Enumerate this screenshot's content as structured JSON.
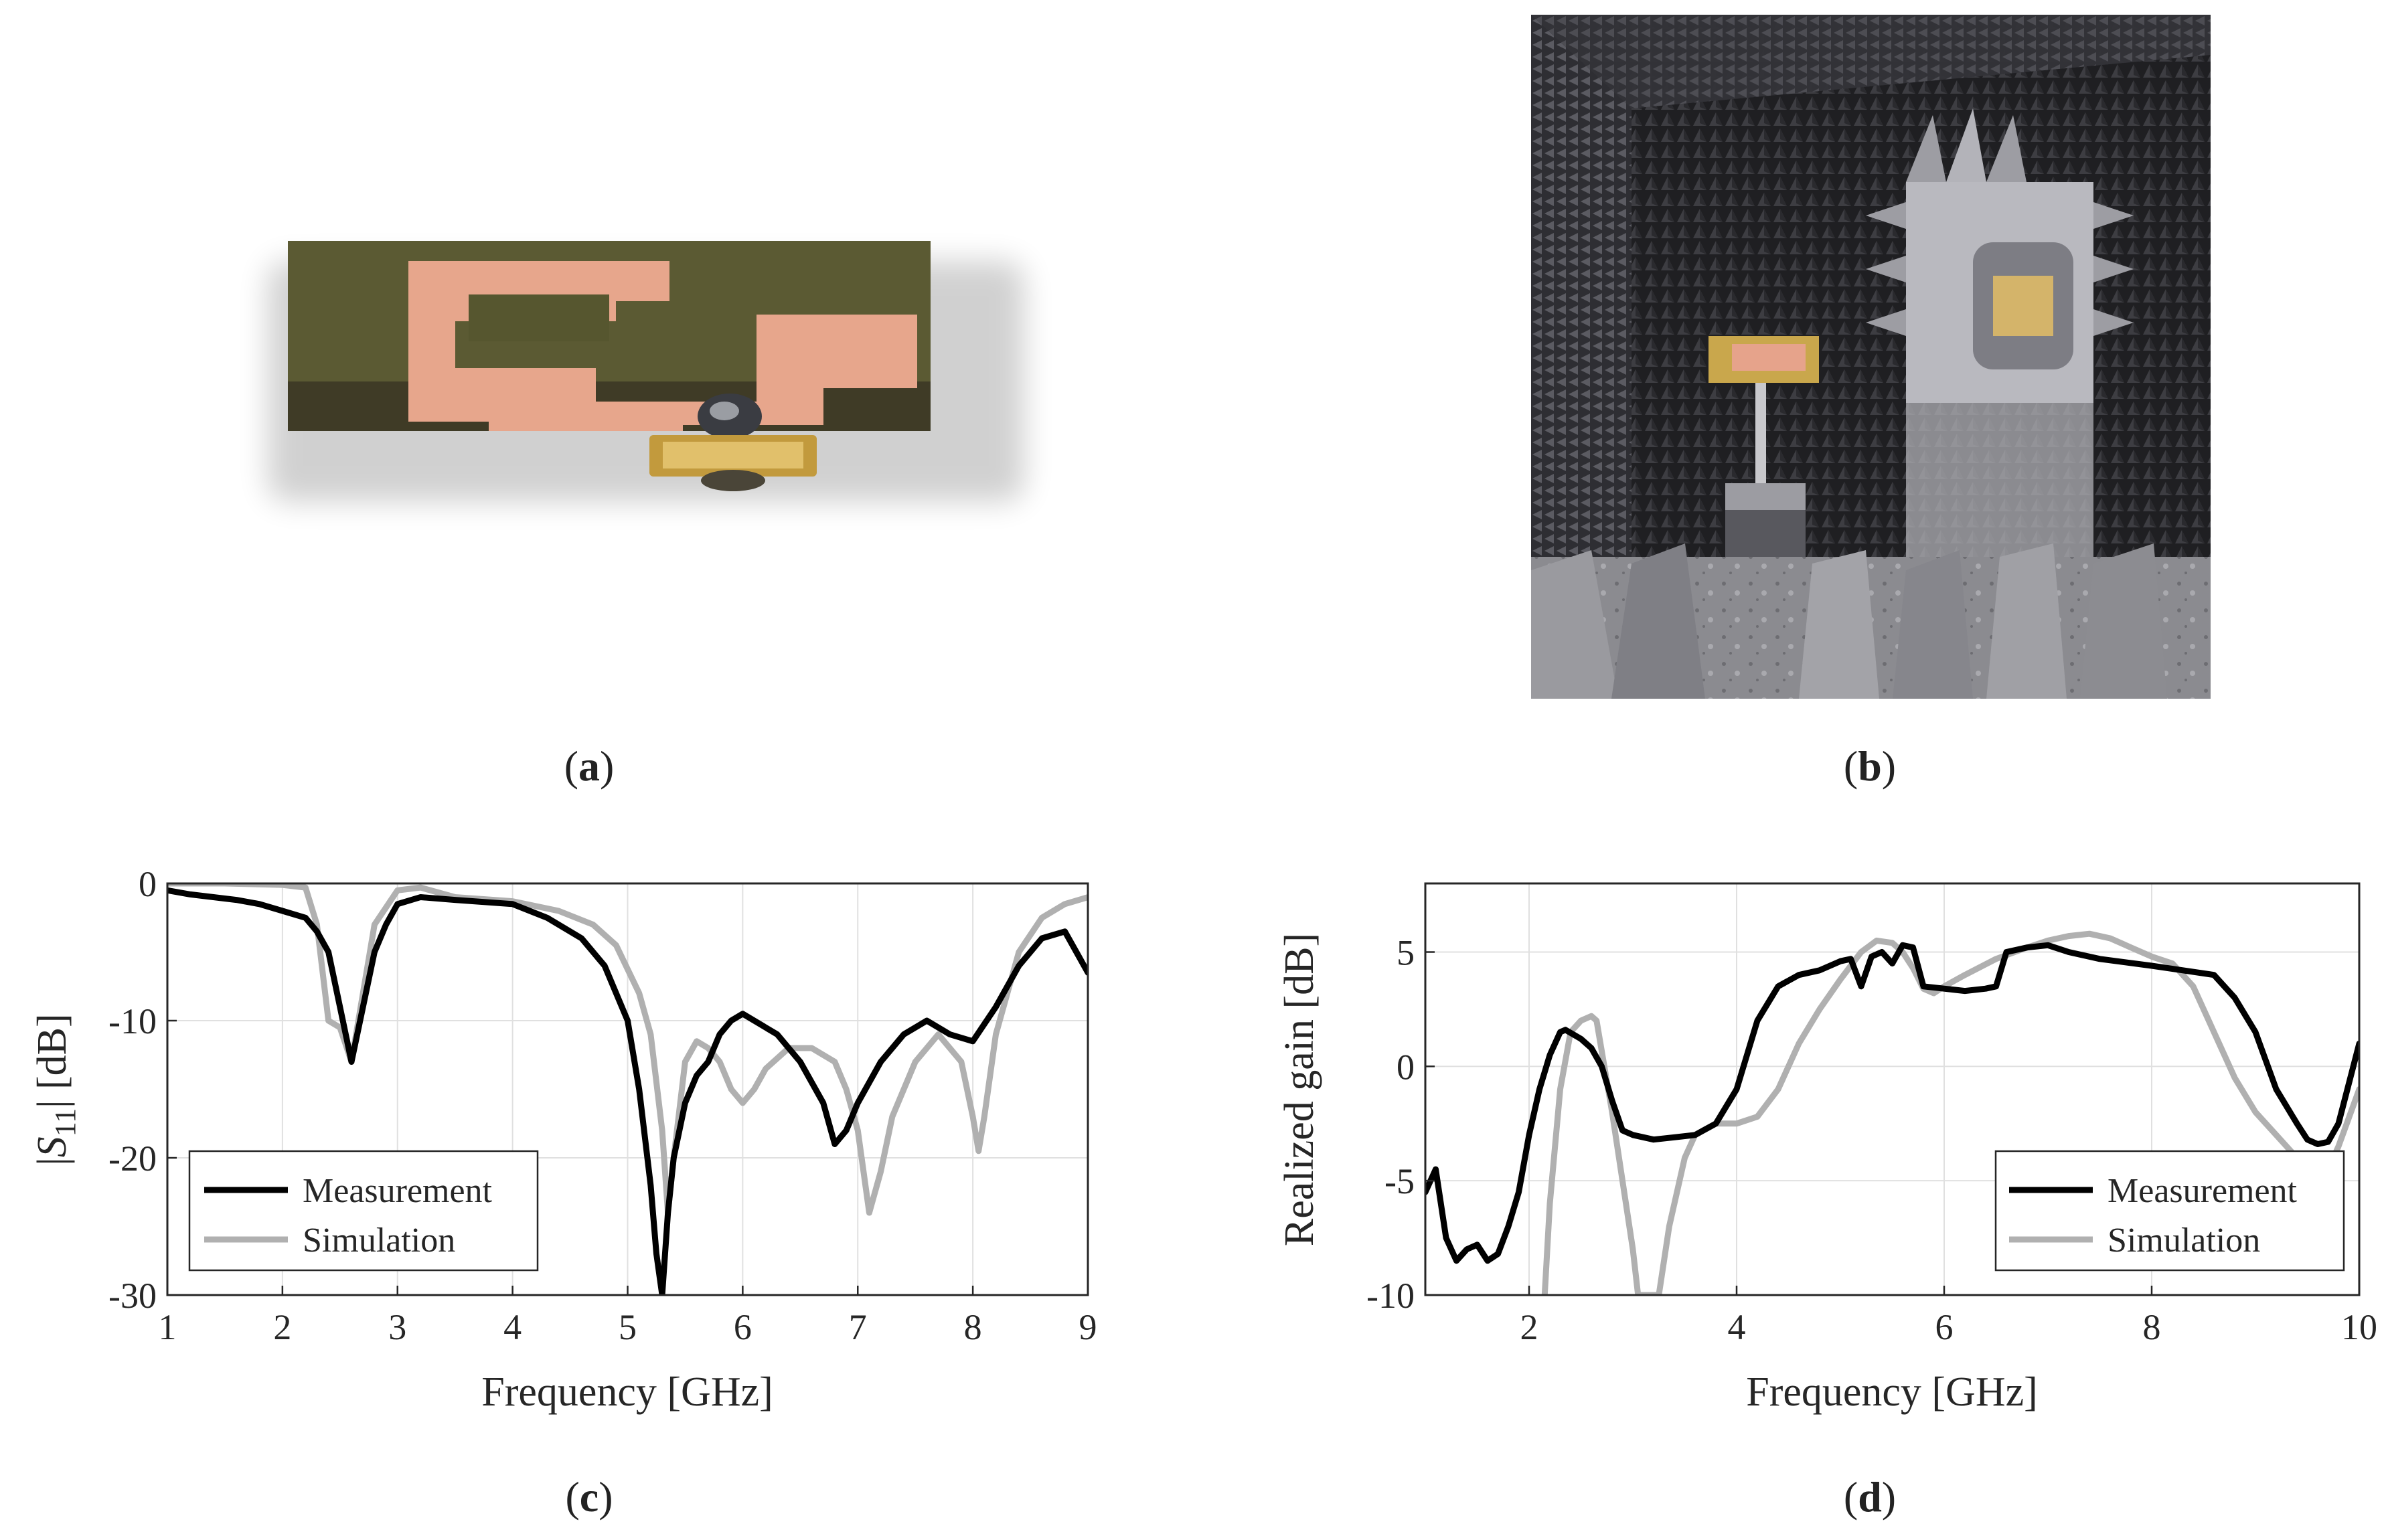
{
  "panels": {
    "a": {
      "letter": "a"
    },
    "b": {
      "letter": "b"
    },
    "c": {
      "letter": "c"
    },
    "d": {
      "letter": "d"
    }
  },
  "colors": {
    "measurement": "#000000",
    "simulation": "#b0b0b0",
    "grid": "#e0e0e0",
    "pcb_substrate": "#5f5b33",
    "pcb_copper": "#e9a88e",
    "connector_gold": "#c39a3e",
    "chamber_absorber": "#2c2c2e",
    "chamber_floor": "#8d8d90"
  },
  "chart_data": [
    {
      "panel": "c",
      "type": "line",
      "xlabel": "Frequency [GHz]",
      "ylabel": "|S11| [dB]",
      "xlim": [
        1,
        9
      ],
      "ylim": [
        -30,
        0
      ],
      "xticks": [
        1,
        2,
        3,
        4,
        5,
        6,
        7,
        8,
        9
      ],
      "yticks": [
        0,
        -10,
        -20,
        -30
      ],
      "grid": true,
      "legend_position": "bottom-left",
      "series": [
        {
          "name": "Measurement",
          "x": [
            1.0,
            1.2,
            1.4,
            1.6,
            1.8,
            2.0,
            2.2,
            2.3,
            2.4,
            2.5,
            2.6,
            2.7,
            2.8,
            2.9,
            3.0,
            3.2,
            3.5,
            4.0,
            4.3,
            4.6,
            4.8,
            5.0,
            5.1,
            5.2,
            5.25,
            5.3,
            5.35,
            5.4,
            5.5,
            5.6,
            5.7,
            5.8,
            5.9,
            6.0,
            6.1,
            6.2,
            6.3,
            6.5,
            6.7,
            6.8,
            6.9,
            7.0,
            7.2,
            7.4,
            7.6,
            7.8,
            8.0,
            8.2,
            8.4,
            8.6,
            8.8,
            8.9,
            9.0
          ],
          "y": [
            -0.5,
            -0.8,
            -1.0,
            -1.2,
            -1.5,
            -2.0,
            -2.5,
            -3.5,
            -5.0,
            -9.0,
            -13.0,
            -9.0,
            -5.0,
            -3.0,
            -1.5,
            -1.0,
            -1.2,
            -1.5,
            -2.5,
            -4.0,
            -6.0,
            -10.0,
            -15.0,
            -22.0,
            -27.0,
            -30.0,
            -24.0,
            -20.0,
            -16.0,
            -14.0,
            -13.0,
            -11.0,
            -10.0,
            -9.5,
            -10.0,
            -10.5,
            -11.0,
            -13.0,
            -16.0,
            -19.0,
            -18.0,
            -16.0,
            -13.0,
            -11.0,
            -10.0,
            -11.0,
            -11.5,
            -9.0,
            -6.0,
            -4.0,
            -3.5,
            -5.0,
            -6.5
          ]
        },
        {
          "name": "Simulation",
          "x": [
            1.0,
            1.5,
            2.0,
            2.2,
            2.3,
            2.4,
            2.5,
            2.6,
            2.7,
            2.8,
            3.0,
            3.2,
            3.5,
            4.0,
            4.4,
            4.7,
            4.9,
            5.1,
            5.2,
            5.3,
            5.35,
            5.4,
            5.5,
            5.6,
            5.7,
            5.8,
            5.9,
            6.0,
            6.1,
            6.2,
            6.4,
            6.6,
            6.8,
            6.9,
            7.0,
            7.1,
            7.2,
            7.3,
            7.5,
            7.7,
            7.9,
            8.0,
            8.05,
            8.1,
            8.2,
            8.4,
            8.6,
            8.8,
            9.0
          ],
          "y": [
            0.0,
            0.0,
            -0.1,
            -0.3,
            -3.0,
            -10.0,
            -10.5,
            -13.0,
            -8.0,
            -3.0,
            -0.5,
            -0.3,
            -1.0,
            -1.3,
            -2.0,
            -3.0,
            -4.5,
            -8.0,
            -11.0,
            -18.0,
            -24.0,
            -20.0,
            -13.0,
            -11.5,
            -12.0,
            -13.0,
            -15.0,
            -16.0,
            -15.0,
            -13.5,
            -12.0,
            -12.0,
            -13.0,
            -15.0,
            -18.0,
            -24.0,
            -21.0,
            -17.0,
            -13.0,
            -11.0,
            -13.0,
            -17.0,
            -19.5,
            -17.0,
            -11.0,
            -5.0,
            -2.5,
            -1.5,
            -1.0
          ]
        }
      ]
    },
    {
      "panel": "d",
      "type": "line",
      "xlabel": "Frequency [GHz]",
      "ylabel": "Realized gain [dB]",
      "xlim": [
        1,
        10
      ],
      "ylim": [
        -10,
        8
      ],
      "xticks": [
        2,
        4,
        6,
        8,
        10
      ],
      "yticks": [
        5,
        0,
        -5,
        -10
      ],
      "grid": true,
      "legend_position": "bottom-right",
      "series": [
        {
          "name": "Measurement",
          "x": [
            1.0,
            1.1,
            1.2,
            1.3,
            1.4,
            1.5,
            1.6,
            1.7,
            1.8,
            1.9,
            2.0,
            2.1,
            2.2,
            2.3,
            2.35,
            2.5,
            2.6,
            2.7,
            2.8,
            2.9,
            3.0,
            3.2,
            3.4,
            3.6,
            3.8,
            4.0,
            4.2,
            4.4,
            4.6,
            4.8,
            5.0,
            5.1,
            5.2,
            5.3,
            5.4,
            5.5,
            5.6,
            5.7,
            5.8,
            6.0,
            6.2,
            6.4,
            6.5,
            6.6,
            6.8,
            7.0,
            7.2,
            7.5,
            8.0,
            8.3,
            8.6,
            8.8,
            9.0,
            9.2,
            9.4,
            9.5,
            9.6,
            9.7,
            9.8,
            10.0
          ],
          "y": [
            -5.5,
            -4.5,
            -7.5,
            -8.5,
            -8.0,
            -7.8,
            -8.5,
            -8.2,
            -7.0,
            -5.5,
            -3.0,
            -1.0,
            0.5,
            1.5,
            1.6,
            1.2,
            0.8,
            0.0,
            -1.5,
            -2.8,
            -3.0,
            -3.2,
            -3.1,
            -3.0,
            -2.5,
            -1.0,
            2.0,
            3.5,
            4.0,
            4.2,
            4.6,
            4.7,
            3.5,
            4.8,
            5.0,
            4.5,
            5.3,
            5.2,
            3.5,
            3.4,
            3.3,
            3.4,
            3.5,
            5.0,
            5.2,
            5.3,
            5.0,
            4.7,
            4.4,
            4.2,
            4.0,
            3.0,
            1.5,
            -1.0,
            -2.5,
            -3.2,
            -3.4,
            -3.3,
            -2.5,
            1.0
          ]
        },
        {
          "name": "Simulation",
          "x": [
            2.15,
            2.2,
            2.3,
            2.4,
            2.5,
            2.6,
            2.65,
            2.8,
            2.9,
            3.0,
            3.05,
            3.15,
            3.25,
            3.35,
            3.5,
            3.6,
            3.8,
            4.0,
            4.2,
            4.4,
            4.6,
            4.8,
            5.0,
            5.2,
            5.35,
            5.5,
            5.6,
            5.7,
            5.8,
            5.9,
            6.0,
            6.2,
            6.5,
            6.8,
            7.0,
            7.2,
            7.4,
            7.6,
            7.8,
            8.0,
            8.2,
            8.4,
            8.6,
            8.8,
            9.0,
            9.2,
            9.4,
            9.5,
            9.6,
            9.7,
            9.8,
            10.0
          ],
          "y": [
            -10.0,
            -6.0,
            -1.0,
            1.5,
            2.0,
            2.2,
            2.0,
            -2.0,
            -5.0,
            -8.0,
            -10.0,
            -10.0,
            -10.0,
            -7.0,
            -4.0,
            -3.0,
            -2.5,
            -2.5,
            -2.2,
            -1.0,
            1.0,
            2.5,
            3.8,
            5.0,
            5.5,
            5.4,
            5.0,
            4.3,
            3.4,
            3.2,
            3.5,
            4.0,
            4.7,
            5.2,
            5.5,
            5.7,
            5.8,
            5.6,
            5.2,
            4.8,
            4.5,
            3.5,
            1.5,
            -0.5,
            -2.0,
            -3.0,
            -4.0,
            -4.8,
            -5.5,
            -4.5,
            -3.5,
            -1.0
          ]
        }
      ]
    }
  ]
}
